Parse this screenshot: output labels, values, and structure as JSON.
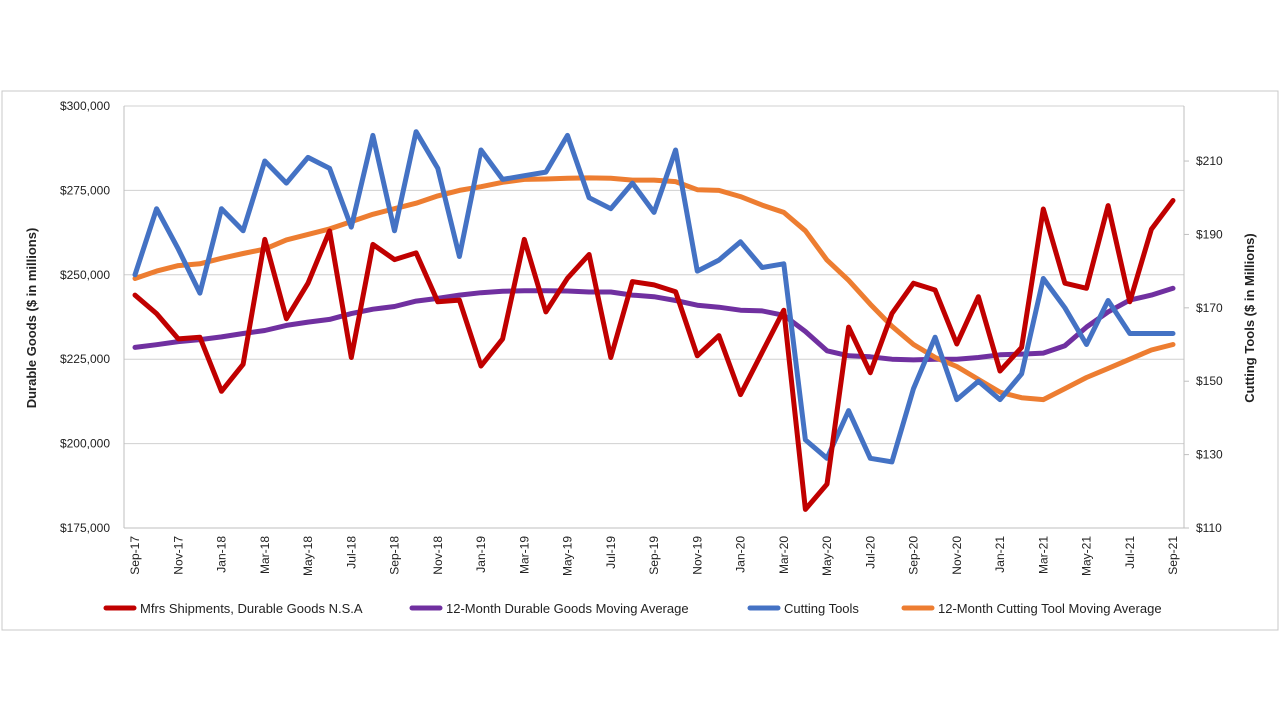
{
  "chart_data": {
    "type": "line",
    "title": "",
    "y_left_label": "Durable Goods ($ in millions)",
    "y_right_label": "Cutting Tools ($ in Millions)",
    "y_left_ticks": [
      "$175,000",
      "$200,000",
      "$225,000",
      "$250,000",
      "$275,000",
      "$300,000"
    ],
    "y_right_ticks": [
      "$110",
      "$130",
      "$150",
      "$170",
      "$190",
      "$210"
    ],
    "y_left_range": [
      175000,
      300000
    ],
    "y_right_range": [
      110,
      225
    ],
    "grid": "horizontal",
    "legend_position": "bottom",
    "x": [
      "Sep-17",
      "Oct-17",
      "Nov-17",
      "Dec-17",
      "Jan-18",
      "Feb-18",
      "Mar-18",
      "Apr-18",
      "May-18",
      "Jun-18",
      "Jul-18",
      "Aug-18",
      "Sep-18",
      "Oct-18",
      "Nov-18",
      "Dec-18",
      "Jan-19",
      "Feb-19",
      "Mar-19",
      "Apr-19",
      "May-19",
      "Jun-19",
      "Jul-19",
      "Aug-19",
      "Sep-19",
      "Oct-19",
      "Nov-19",
      "Dec-19",
      "Jan-20",
      "Feb-20",
      "Mar-20",
      "Apr-20",
      "May-20",
      "Jun-20",
      "Jul-20",
      "Aug-20",
      "Sep-20",
      "Oct-20",
      "Nov-20",
      "Dec-20",
      "Jan-21",
      "Feb-21",
      "Mar-21",
      "Apr-21",
      "May-21",
      "Jun-21",
      "Jul-21",
      "Aug-21",
      "Sep-21"
    ],
    "x_tick_labels": [
      "Sep-17",
      "Nov-17",
      "Jan-18",
      "Mar-18",
      "May-18",
      "Jul-18",
      "Sep-18",
      "Nov-18",
      "Jan-19",
      "Mar-19",
      "May-19",
      "Jul-19",
      "Sep-19",
      "Nov-19",
      "Jan-20",
      "Mar-20",
      "May-20",
      "Jul-20",
      "Sep-20",
      "Nov-20",
      "Jan-21",
      "Mar-21",
      "May-21",
      "Jul-21",
      "Sep-21"
    ],
    "series": [
      {
        "name": "Mfrs Shipments, Durable Goods N.S.A",
        "axis": "left",
        "color": "#c00000",
        "values": [
          244000,
          238500,
          231000,
          231500,
          215500,
          223500,
          260500,
          237000,
          247500,
          263000,
          225500,
          259000,
          254500,
          256500,
          242000,
          242500,
          223000,
          231000,
          260500,
          239000,
          249000,
          256000,
          225500,
          248000,
          247000,
          245000,
          226000,
          232000,
          214500,
          227000,
          239500,
          180500,
          188000,
          234500,
          221000,
          238500,
          247500,
          245500,
          229500,
          243500,
          221500,
          228500,
          269500,
          247500,
          246000,
          270500,
          242000,
          263500,
          272000
        ]
      },
      {
        "name": "12-Month Durable Goods Moving Average",
        "axis": "left",
        "color": "#7030a0",
        "values": [
          228500,
          229300,
          230200,
          230800,
          231600,
          232600,
          233500,
          235000,
          236000,
          236800,
          238500,
          239800,
          240600,
          242200,
          243000,
          244000,
          244700,
          245100,
          245300,
          245300,
          245200,
          244900,
          244900,
          244000,
          243500,
          242400,
          241000,
          240400,
          239500,
          239300,
          238000,
          233200,
          227500,
          226000,
          225700,
          225000,
          224800,
          225000,
          225000,
          225500,
          226300,
          226500,
          226800,
          229000,
          234500,
          239000,
          242500,
          244000,
          246000
        ]
      },
      {
        "name": "Cutting Tools",
        "axis": "right",
        "color": "#4472c4",
        "values": [
          179,
          197,
          186,
          174,
          197,
          191,
          210,
          204,
          211,
          208,
          192,
          217,
          191,
          218,
          208,
          184,
          213,
          205,
          206,
          207,
          217,
          200,
          197,
          204,
          196,
          213,
          180,
          183,
          188,
          181,
          182,
          134,
          129,
          142,
          129,
          128,
          148,
          162,
          145,
          150,
          145,
          152,
          178,
          170,
          160,
          172,
          163,
          163,
          163
        ]
      },
      {
        "name": "12-Month Cutting Tool Moving Average",
        "axis": "right",
        "color": "#ed7d31",
        "values": [
          178,
          180,
          181.5,
          182,
          183.5,
          184.8,
          186,
          188.5,
          190,
          191.5,
          193.5,
          195.5,
          197,
          198.5,
          200.5,
          202,
          203,
          204.2,
          205,
          205.1,
          205.3,
          205.4,
          205.3,
          204.8,
          204.8,
          204.4,
          202.2,
          202,
          200.3,
          198,
          196,
          191,
          183,
          177.5,
          171,
          165,
          160,
          156.5,
          154,
          150.5,
          147,
          145.5,
          145,
          148,
          151,
          153.5,
          156,
          158.5,
          160
        ]
      }
    ]
  }
}
